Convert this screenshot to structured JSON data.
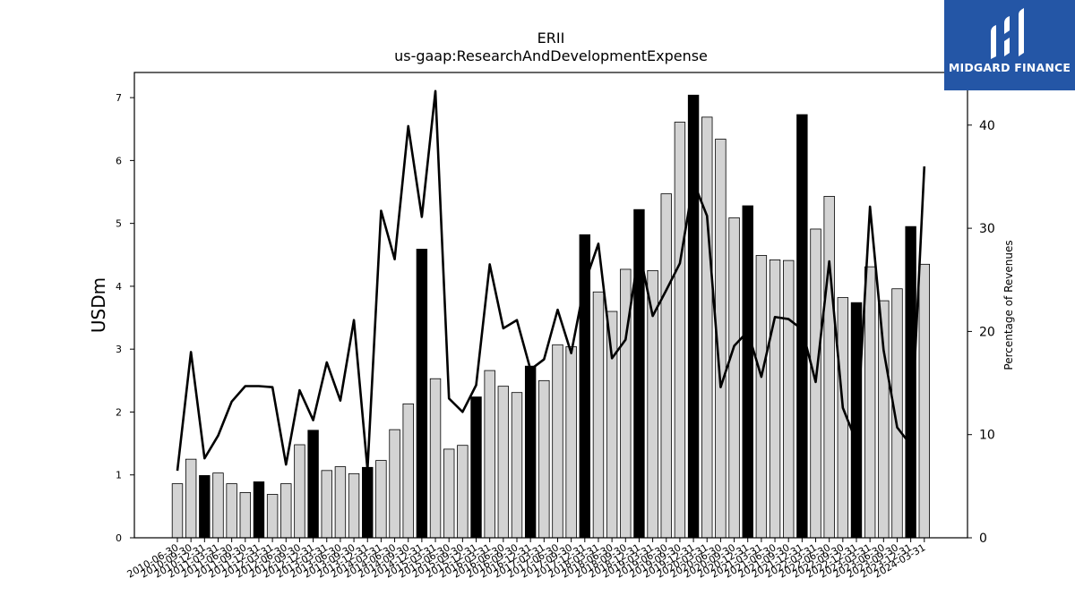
{
  "brand": {
    "name": "MIDGARD FINANCE",
    "bg": "#2456a6"
  },
  "chart_data": {
    "type": "bar",
    "title": "ERII",
    "subtitle": "us-gaap:ResearchAndDevelopmentExpense",
    "ylabel": "USDm",
    "y2label": "Percentage of Revenues",
    "ylim": [
      0,
      7.4
    ],
    "y2lim": [
      0,
      45.1
    ],
    "yticks": [
      0,
      1,
      2,
      3,
      4,
      5,
      6,
      7
    ],
    "y2ticks": [
      0,
      10,
      20,
      30,
      40
    ],
    "grid": false,
    "colors": {
      "q4": "#000000",
      "other": "#d3d3d3",
      "line": "#000000"
    },
    "categories": [
      "2010-06-30",
      "2010-09-30",
      "2010-12-31",
      "2011-03-31",
      "2011-06-30",
      "2011-09-30",
      "2011-12-31",
      "2012-03-31",
      "2012-06-30",
      "2012-09-30",
      "2012-12-31",
      "2013-03-31",
      "2013-06-30",
      "2013-09-30",
      "2013-12-31",
      "2014-03-31",
      "2014-06-30",
      "2014-09-30",
      "2014-12-31",
      "2015-03-31",
      "2015-06-30",
      "2015-09-30",
      "2015-12-31",
      "2016-03-31",
      "2016-06-30",
      "2016-09-30",
      "2016-12-31",
      "2017-03-31",
      "2017-06-30",
      "2017-09-30",
      "2017-12-31",
      "2018-03-31",
      "2018-06-30",
      "2018-09-30",
      "2018-12-31",
      "2019-03-31",
      "2019-06-30",
      "2019-09-30",
      "2019-12-31",
      "2020-03-31",
      "2020-06-30",
      "2020-09-30",
      "2020-12-31",
      "2021-03-31",
      "2021-06-30",
      "2021-09-30",
      "2021-12-31",
      "2022-03-31",
      "2022-06-30",
      "2022-09-30",
      "2022-12-31",
      "2023-03-31",
      "2023-06-30",
      "2023-09-30",
      "2023-12-31",
      "2024-03-31"
    ],
    "series": [
      {
        "type": "bar",
        "values": [
          0.86,
          1.25,
          0.99,
          1.03,
          0.86,
          0.72,
          0.89,
          0.69,
          0.86,
          1.48,
          1.71,
          1.07,
          1.13,
          1.02,
          1.12,
          1.23,
          1.72,
          2.13,
          4.59,
          2.53,
          1.41,
          1.47,
          2.24,
          2.66,
          2.41,
          2.31,
          2.73,
          2.5,
          3.07,
          3.04,
          4.82,
          3.91,
          3.6,
          4.27,
          5.22,
          4.25,
          5.47,
          6.61,
          7.04,
          6.69,
          6.34,
          5.09,
          5.28,
          4.49,
          4.42,
          4.41,
          6.73,
          4.91,
          5.43,
          3.82,
          3.74,
          4.31,
          3.77,
          3.96,
          4.95,
          4.35
        ]
      },
      {
        "type": "line",
        "values": [
          6.5,
          18.0,
          7.7,
          9.9,
          13.2,
          14.7,
          14.7,
          14.6,
          7.1,
          14.3,
          11.4,
          17.0,
          13.3,
          21.1,
          6.6,
          31.7,
          27.0,
          39.9,
          31.1,
          43.3,
          13.5,
          12.2,
          14.8,
          26.5,
          20.3,
          21.1,
          16.3,
          17.3,
          22.1,
          17.9,
          24.7,
          28.5,
          17.4,
          19.2,
          27.9,
          21.5,
          24.0,
          26.6,
          34.5,
          31.2,
          14.6,
          18.6,
          20.0,
          15.6,
          21.4,
          21.2,
          20.2,
          15.1,
          26.8,
          12.6,
          9.3,
          32.1,
          18.2,
          10.7,
          9.0,
          36.0
        ]
      }
    ]
  }
}
